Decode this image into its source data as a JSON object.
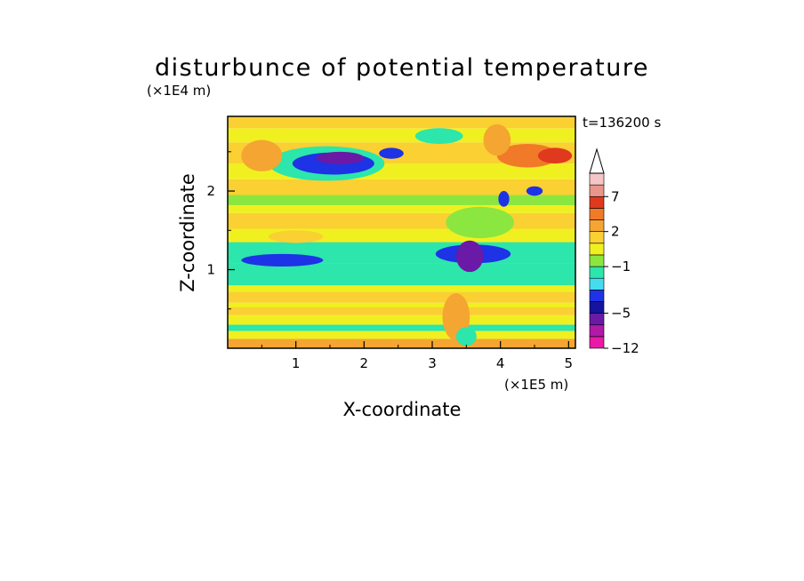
{
  "chart_data": {
    "type": "heatmap",
    "title": "disturbunce of potential temperature",
    "xlabel": "X-coordinate",
    "ylabel": "Z-coordinate",
    "x_unit": "(×1E5 m)",
    "y_unit": "(×1E4 m)",
    "time_label": "t=136200 s",
    "xlim": [
      0,
      5.1
    ],
    "ylim": [
      0,
      2.95
    ],
    "x_ticks": [
      1,
      2,
      3,
      4,
      5
    ],
    "y_ticks": [
      1,
      2
    ],
    "grid": false,
    "legend": "colorbar right",
    "colorbar": {
      "labels": [
        "7",
        "2",
        "−1",
        "−5",
        "−12"
      ],
      "label_levels": [
        7,
        2,
        -1,
        -5,
        -12
      ],
      "levels": [
        -12,
        -9,
        -7,
        -5,
        -4,
        -3,
        -2,
        -1,
        0,
        1,
        2,
        3,
        5,
        7,
        9,
        12
      ],
      "colors": [
        "#e81aa6",
        "#b01aa6",
        "#6a1aa6",
        "#1414a0",
        "#1e32e6",
        "#46dcf0",
        "#2ce6ab",
        "#8ce640",
        "#f0f020",
        "#fad032",
        "#f5a531",
        "#f07a28",
        "#e03a1e",
        "#e8968c",
        "#f5c6c6"
      ],
      "extend": "max"
    },
    "bands": [
      {
        "z0": 0.0,
        "z1": 0.12,
        "level": 2
      },
      {
        "z0": 0.12,
        "z1": 0.22,
        "level": 0.5
      },
      {
        "z0": 0.22,
        "z1": 0.3,
        "level": -1.5
      },
      {
        "z0": 0.3,
        "z1": 0.42,
        "level": 0.5
      },
      {
        "z0": 0.42,
        "z1": 0.52,
        "level": 1.5
      },
      {
        "z0": 0.52,
        "z1": 0.58,
        "level": 0.5
      },
      {
        "z0": 0.58,
        "z1": 0.72,
        "level": 1.5
      },
      {
        "z0": 0.72,
        "z1": 0.8,
        "level": 0.5
      },
      {
        "z0": 0.8,
        "z1": 1.08,
        "level": -1.5
      },
      {
        "z0": 1.08,
        "z1": 1.35,
        "level": -1.5
      },
      {
        "z0": 1.35,
        "z1": 1.52,
        "level": 0.5
      },
      {
        "z0": 1.52,
        "z1": 1.72,
        "level": 1.5
      },
      {
        "z0": 1.72,
        "z1": 1.82,
        "level": 0.5
      },
      {
        "z0": 1.82,
        "z1": 1.95,
        "level": -0.5
      },
      {
        "z0": 1.95,
        "z1": 2.15,
        "level": 1.5
      },
      {
        "z0": 2.15,
        "z1": 2.35,
        "level": 0.5
      },
      {
        "z0": 2.35,
        "z1": 2.62,
        "level": 1.5
      },
      {
        "z0": 2.62,
        "z1": 2.8,
        "level": 0.5
      },
      {
        "z0": 2.8,
        "z1": 2.95,
        "level": 1.5
      }
    ],
    "features": [
      {
        "x": 1.45,
        "z": 2.35,
        "rx": 0.85,
        "rz": 0.22,
        "level": -1.5
      },
      {
        "x": 1.55,
        "z": 2.35,
        "rx": 0.6,
        "rz": 0.14,
        "level": -3.5
      },
      {
        "x": 1.65,
        "z": 2.42,
        "rx": 0.35,
        "rz": 0.08,
        "level": -5.5
      },
      {
        "x": 2.4,
        "z": 2.48,
        "rx": 0.18,
        "rz": 0.07,
        "level": -3.5
      },
      {
        "x": 0.8,
        "z": 1.12,
        "rx": 0.6,
        "rz": 0.08,
        "level": -3.5
      },
      {
        "x": 3.6,
        "z": 1.2,
        "rx": 0.55,
        "rz": 0.12,
        "level": -3.5
      },
      {
        "x": 3.55,
        "z": 1.17,
        "rx": 0.2,
        "rz": 0.2,
        "level": -5.5
      },
      {
        "x": 4.4,
        "z": 2.45,
        "rx": 0.45,
        "rz": 0.15,
        "level": 3.5
      },
      {
        "x": 4.8,
        "z": 2.45,
        "rx": 0.25,
        "rz": 0.1,
        "level": 5.5
      },
      {
        "x": 0.5,
        "z": 2.45,
        "rx": 0.3,
        "rz": 0.2,
        "level": 2.5
      },
      {
        "x": 3.95,
        "z": 2.65,
        "rx": 0.2,
        "rz": 0.2,
        "level": 2.5
      },
      {
        "x": 3.35,
        "z": 0.4,
        "rx": 0.2,
        "rz": 0.3,
        "level": 2.5
      },
      {
        "x": 3.5,
        "z": 0.15,
        "rx": 0.15,
        "rz": 0.12,
        "level": -1.5
      },
      {
        "x": 4.5,
        "z": 2.0,
        "rx": 0.12,
        "rz": 0.06,
        "level": -3.5
      },
      {
        "x": 4.05,
        "z": 1.9,
        "rx": 0.08,
        "rz": 0.1,
        "level": -3.5
      },
      {
        "x": 3.1,
        "z": 2.7,
        "rx": 0.35,
        "rz": 0.1,
        "level": -1.5
      },
      {
        "x": 1.0,
        "z": 1.42,
        "rx": 0.4,
        "rz": 0.08,
        "level": 1.5
      },
      {
        "x": 3.7,
        "z": 1.6,
        "rx": 0.5,
        "rz": 0.2,
        "level": -0.5
      }
    ]
  }
}
